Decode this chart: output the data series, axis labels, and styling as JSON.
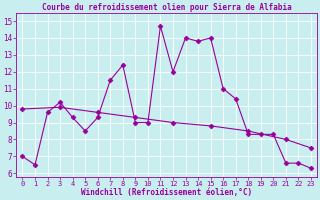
{
  "title": "Courbe du refroidissement olien pour Sierra de Alfabia",
  "xlabel": "Windchill (Refroidissement éolien,°C)",
  "bg_color": "#c8eef0",
  "line_color": "#990099",
  "grid_color": "#ffffff",
  "xlim": [
    -0.5,
    23.5
  ],
  "ylim": [
    5.8,
    15.5
  ],
  "yticks": [
    6,
    7,
    8,
    9,
    10,
    11,
    12,
    13,
    14,
    15
  ],
  "xticks": [
    0,
    1,
    2,
    3,
    4,
    5,
    6,
    7,
    8,
    9,
    10,
    11,
    12,
    13,
    14,
    15,
    16,
    17,
    18,
    19,
    20,
    21,
    22,
    23
  ],
  "series1_x": [
    0,
    1,
    2,
    3,
    4,
    5,
    6,
    7,
    8,
    9,
    10,
    11,
    12,
    13,
    14,
    15,
    16,
    17,
    18,
    19,
    20,
    21,
    22,
    23
  ],
  "series1_y": [
    7.0,
    6.5,
    9.6,
    10.2,
    9.3,
    8.5,
    9.3,
    11.5,
    12.4,
    9.0,
    9.0,
    14.7,
    12.0,
    14.0,
    13.8,
    14.0,
    11.0,
    10.4,
    8.3,
    8.3,
    8.3,
    6.6,
    6.6,
    6.3
  ],
  "series2_x": [
    0,
    3,
    6,
    9,
    12,
    15,
    18,
    21,
    23
  ],
  "series2_y": [
    9.8,
    9.9,
    9.6,
    9.3,
    9.0,
    8.8,
    8.5,
    8.0,
    7.5
  ],
  "marker": "D",
  "markersize": 2.5,
  "linewidth": 0.8,
  "tick_fontsize": 5.0,
  "xlabel_fontsize": 5.5,
  "title_fontsize": 5.5
}
